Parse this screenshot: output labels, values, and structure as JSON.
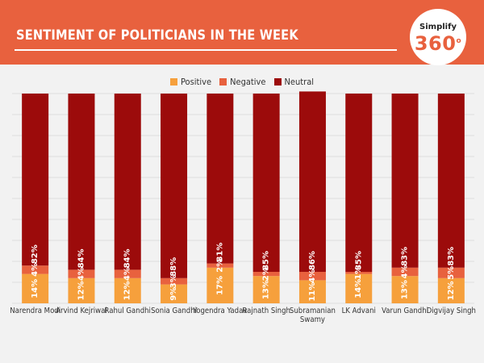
{
  "header": {
    "title": "SENTIMENT OF POLITICIANS IN THE WEEK"
  },
  "logo": {
    "top": "Simplify",
    "number": "360",
    "degree": "o"
  },
  "colors": {
    "header_bg": "#e8613e",
    "positive": "#f6a03c",
    "negative": "#e8613e",
    "neutral": "#9c0b0b"
  },
  "chart_data": {
    "type": "bar",
    "stacked": true,
    "percent_stacked": true,
    "title": "SENTIMENT OF POLITICIANS IN THE WEEK",
    "xlabel": "",
    "ylabel": "",
    "ylim": [
      0,
      100
    ],
    "legend_position": "top-center",
    "categories": [
      "Narendra Modi",
      "Arvind Kejriwal",
      "Rahul Gandhi",
      "Sonia Gandhi",
      "Yogendra Yadav",
      "Rajnath Singh",
      "Subramanian Swamy",
      "LK Advani",
      "Varun Gandhi",
      "Digvijay Singh"
    ],
    "category_lines": [
      [
        "Narendra Modi"
      ],
      [
        "Arvind Kejriwal"
      ],
      [
        "Rahul Gandhi"
      ],
      [
        "Sonia Gandhi"
      ],
      [
        "Yogendra Yadav"
      ],
      [
        "Rajnath Singh"
      ],
      [
        "Subramanian",
        "Swamy"
      ],
      [
        "LK Advani"
      ],
      [
        "Varun Gandhi"
      ],
      [
        "Digvijay Singh"
      ]
    ],
    "series": [
      {
        "name": "Positive",
        "color": "#f6a03c",
        "values": [
          14,
          12,
          12,
          9,
          17,
          13,
          11,
          14,
          13,
          12
        ],
        "labels": [
          "14%",
          "12%",
          "12%",
          "9%",
          "17%",
          "13%",
          "11%",
          "14%",
          "13%",
          "12%"
        ]
      },
      {
        "name": "Negative",
        "color": "#e8613e",
        "values": [
          4,
          4,
          4,
          3,
          2,
          2,
          4,
          1,
          4,
          5
        ],
        "labels": [
          "4%",
          "4%",
          "4%",
          "3%",
          "2%",
          "2%",
          "4%",
          "1%",
          "4%",
          "5%"
        ]
      },
      {
        "name": "Neutral",
        "color": "#9c0b0b",
        "values": [
          82,
          84,
          84,
          88,
          81,
          85,
          86,
          85,
          83,
          83
        ],
        "labels": [
          "82%",
          "84%",
          "84%",
          "88%",
          "81%",
          "85%",
          "86%",
          "85%",
          "83%",
          "83%"
        ]
      }
    ]
  }
}
